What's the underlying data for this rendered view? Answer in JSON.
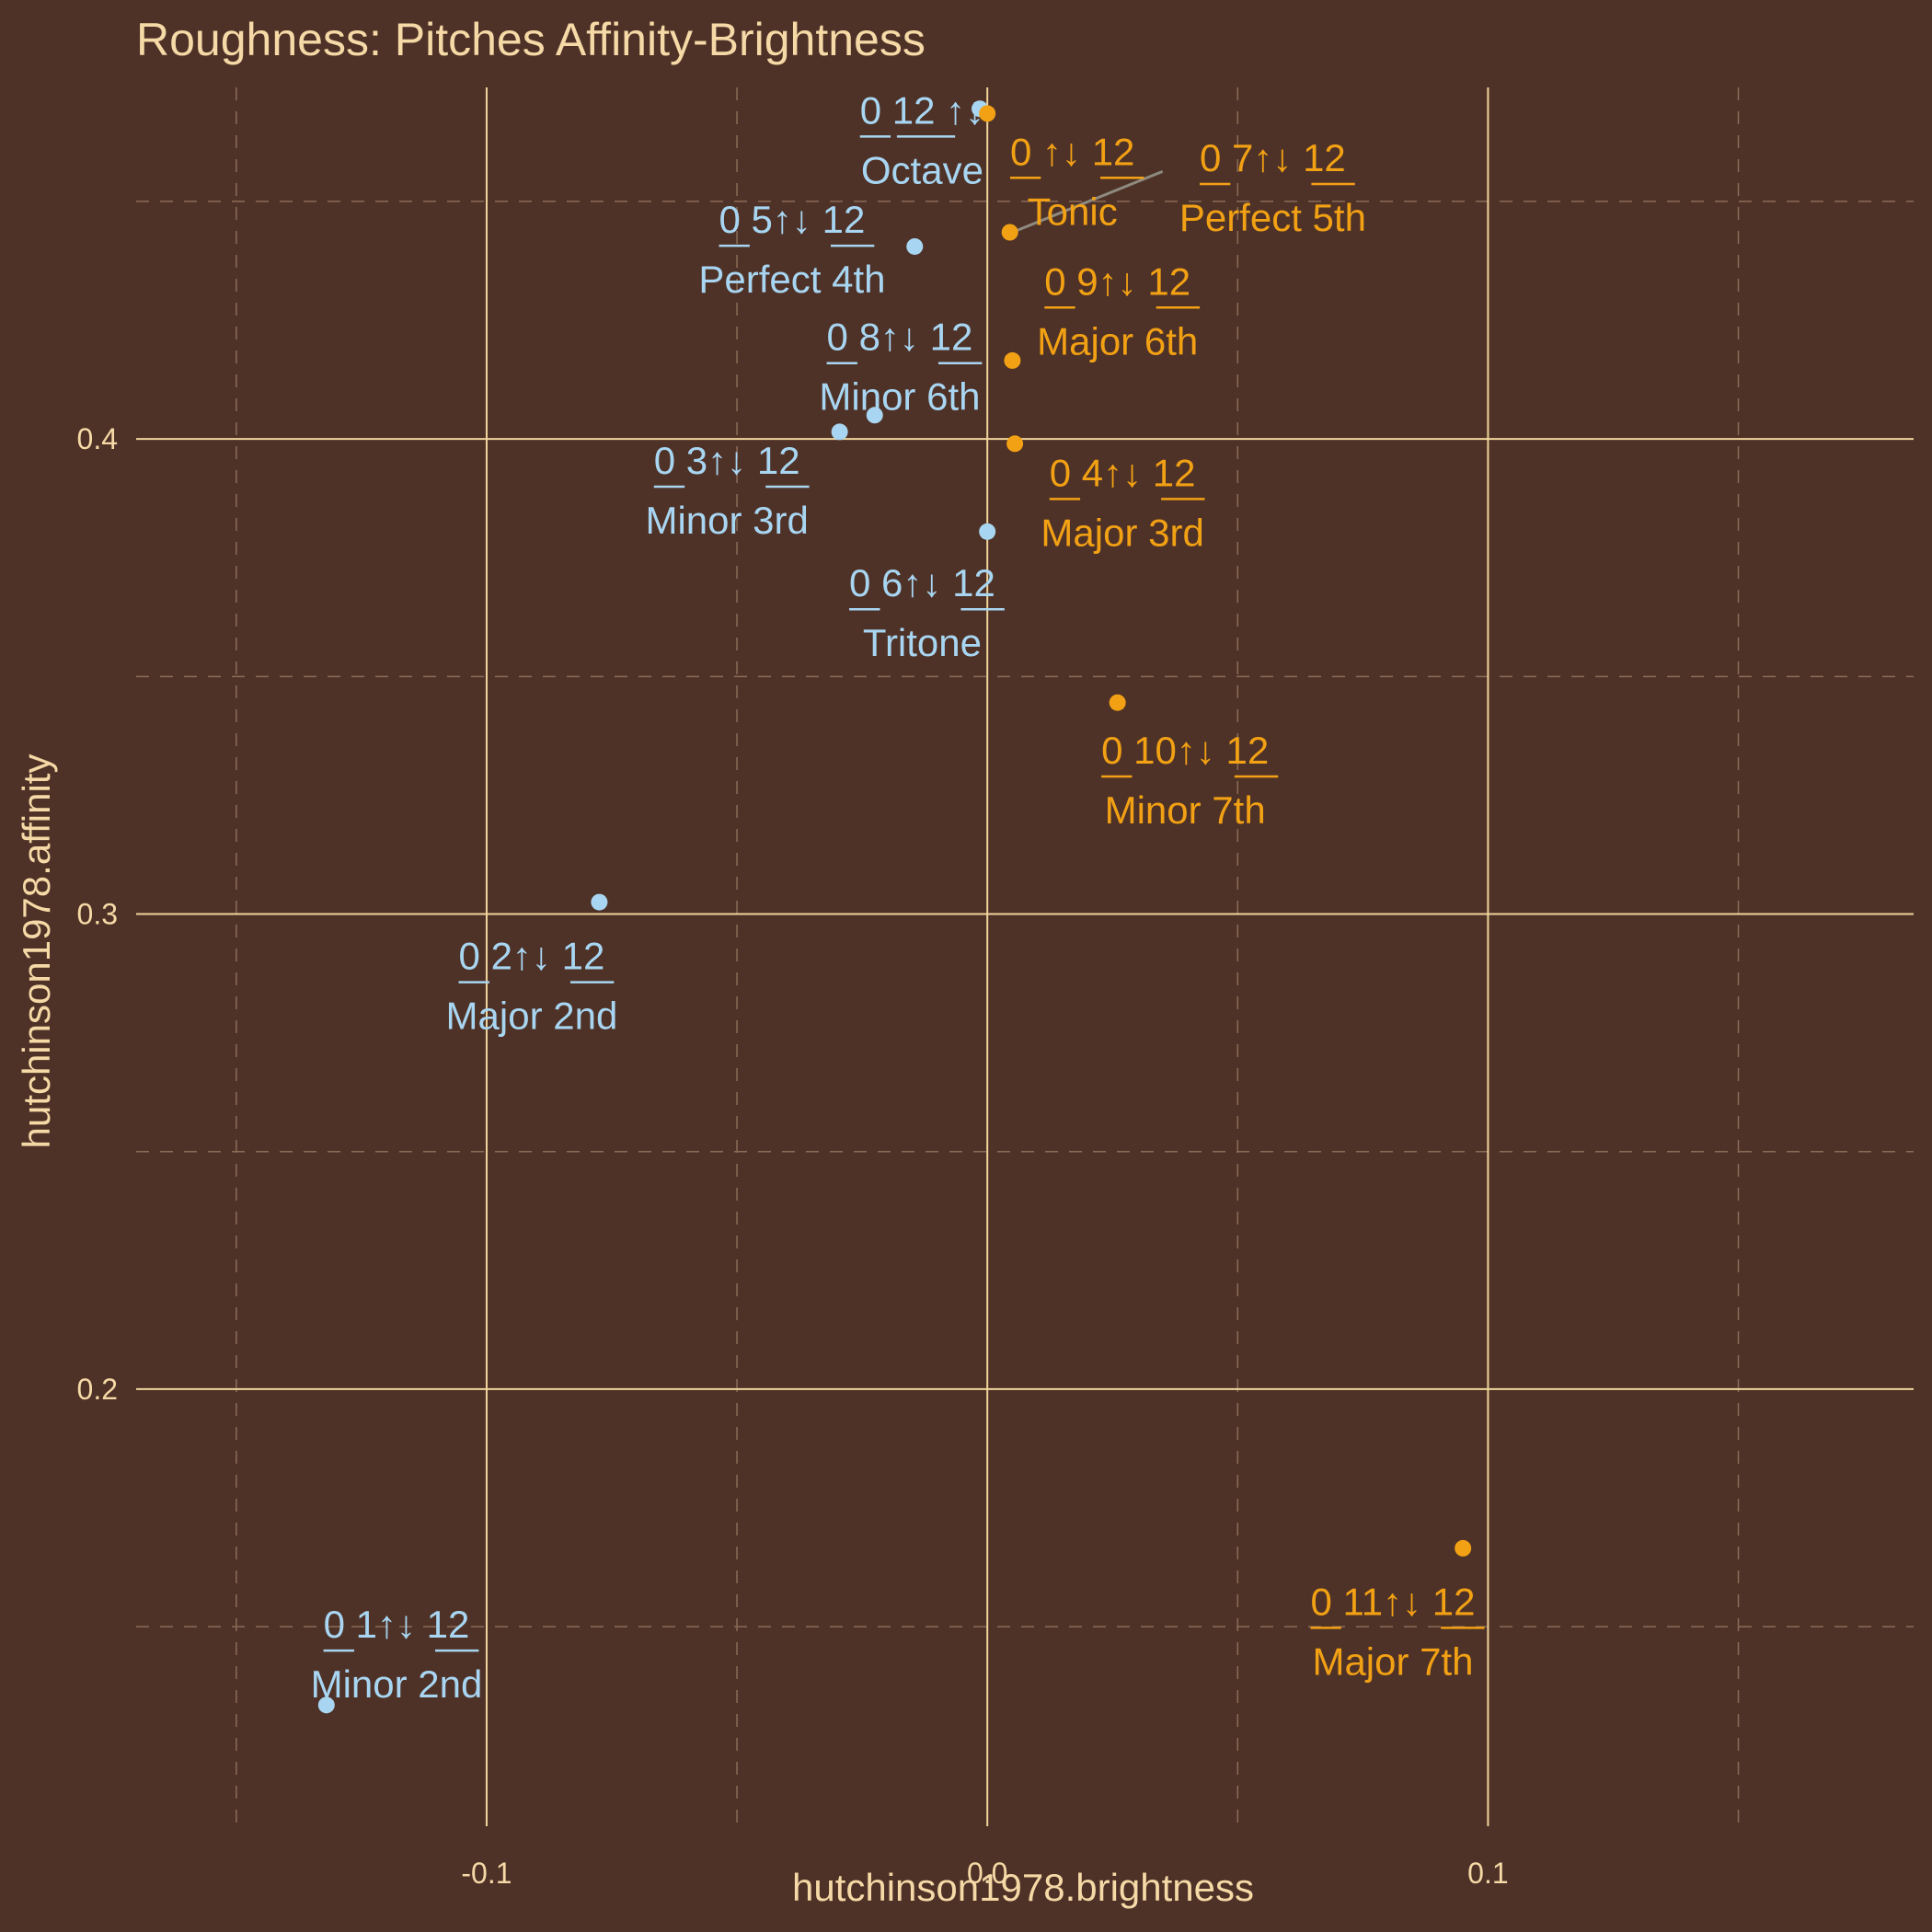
{
  "colors": {
    "background": "#4f3227",
    "text": "#f5d9a6",
    "grid_major": "#f0d59c",
    "grid_minor": "#8a6c57",
    "minor_mode": "#a8d6f2",
    "major_mode": "#f2a114",
    "connector": "#8e8a80"
  },
  "chart_data": {
    "type": "scatter",
    "title": "Roughness: Pitches Affinity-Brightness",
    "xlabel": "hutchinson1978.brightness",
    "ylabel": "hutchinson1978.affinity",
    "xlim": [
      -0.17,
      0.185
    ],
    "ylim": [
      0.108,
      0.474
    ],
    "x_ticks": [
      -0.1,
      0.0,
      0.1
    ],
    "x_tick_labels": [
      "-0.1",
      "0.0",
      "0.1"
    ],
    "y_ticks": [
      0.2,
      0.3,
      0.4
    ],
    "y_tick_labels": [
      "0.2",
      "0.3",
      "0.4"
    ],
    "grid": true,
    "points": [
      {
        "code_a": "0",
        "code_b": "12",
        "arrow": "↑↓",
        "name": "Octave",
        "group": "minor",
        "x": -0.0015,
        "y": 0.4695
      },
      {
        "code_a": "0",
        "code_b": "12",
        "arrow": "↑↓",
        "name": "Tonic",
        "group": "major",
        "x": 0.0,
        "y": 0.4685
      },
      {
        "code_a": "0",
        "code_b": "12",
        "arrow": "↑↓",
        "name": "Perfect 5th",
        "group": "major",
        "x": 0.0045,
        "y": 0.4435
      },
      {
        "code_a": "0",
        "code_b": "12",
        "arrow": "↑↓",
        "name": "Perfect 4th",
        "group": "minor",
        "x": -0.0145,
        "y": 0.4405
      },
      {
        "code_a": "0",
        "code_b": "12",
        "arrow": "↑↓",
        "name": "Major 6th",
        "group": "major",
        "x": 0.005,
        "y": 0.4165
      },
      {
        "code_a": "0",
        "code_b": "12",
        "arrow": "↑↓",
        "name": "Minor 6th",
        "group": "minor",
        "x": -0.0225,
        "y": 0.405
      },
      {
        "code_a": "0",
        "code_b": "12",
        "arrow": "↑↓",
        "name": "Minor 3rd",
        "group": "minor",
        "x": -0.0295,
        "y": 0.4015
      },
      {
        "code_a": "0",
        "code_b": "12",
        "arrow": "↑↓",
        "name": "Major 3rd",
        "group": "major",
        "x": 0.0055,
        "y": 0.399
      },
      {
        "code_a": "0",
        "code_b": "12",
        "arrow": "↑↓",
        "name": "Tritone",
        "group": "minor",
        "x": 0.0,
        "y": 0.3805
      },
      {
        "code_a": "0",
        "code_b": "12",
        "arrow": "↑↓",
        "name": "Minor 7th",
        "group": "major",
        "x": 0.026,
        "y": 0.3445
      },
      {
        "code_a": "0",
        "code_b": "12",
        "arrow": "↑↓",
        "name": "Major 2nd",
        "group": "minor",
        "x": -0.0775,
        "y": 0.3025
      },
      {
        "code_a": "0",
        "code_b": "12",
        "arrow": "↑↓",
        "name": "Major 7th",
        "group": "major",
        "x": 0.095,
        "y": 0.1665
      },
      {
        "code_a": "0",
        "code_b": "12",
        "arrow": "↑↓",
        "name": "Minor 2nd",
        "group": "minor",
        "x": -0.132,
        "y": 0.1335
      }
    ],
    "labels": [
      {
        "prefix": "0",
        "mid": "12",
        "suffix": "↑↓",
        "underline_prefix": true,
        "underline_mid": true,
        "name": "Octave",
        "group": "minor",
        "lx": -0.013,
        "ly": 0.4625
      },
      {
        "prefix": "0",
        "mid": "↑↓",
        "suffix": "12",
        "underline_prefix": true,
        "underline_suffix": true,
        "name": "Tonic",
        "group": "major",
        "lx": 0.017,
        "ly": 0.4538
      },
      {
        "prefix": "0",
        "mid": "7↑↓",
        "suffix": "12",
        "underline_prefix": true,
        "underline_suffix": true,
        "name": "Perfect 5th",
        "group": "major",
        "lx": 0.057,
        "ly": 0.4525
      },
      {
        "prefix": "0",
        "mid": "5↑↓",
        "suffix": "12",
        "underline_prefix": true,
        "underline_suffix": true,
        "name": "Perfect 4th",
        "group": "minor",
        "lx": -0.039,
        "ly": 0.4395
      },
      {
        "prefix": "0",
        "mid": "9↑↓",
        "suffix": "12",
        "underline_prefix": true,
        "underline_suffix": true,
        "name": "Major 6th",
        "group": "major",
        "lx": 0.026,
        "ly": 0.4265
      },
      {
        "prefix": "0",
        "mid": "8↑↓",
        "suffix": "12",
        "underline_prefix": true,
        "underline_suffix": true,
        "name": "Minor 6th",
        "group": "minor",
        "lx": -0.0175,
        "ly": 0.4148
      },
      {
        "prefix": "0",
        "mid": "3↑↓",
        "suffix": "12",
        "underline_prefix": true,
        "underline_suffix": true,
        "name": "Minor 3rd",
        "group": "minor",
        "lx": -0.052,
        "ly": 0.3888
      },
      {
        "prefix": "0",
        "mid": "4↑↓",
        "suffix": "12",
        "underline_prefix": true,
        "underline_suffix": true,
        "name": "Major 3rd",
        "group": "major",
        "lx": 0.027,
        "ly": 0.3862
      },
      {
        "prefix": "0",
        "mid": "6↑↓",
        "suffix": "12",
        "underline_prefix": true,
        "underline_suffix": true,
        "name": "Tritone",
        "group": "minor",
        "lx": -0.013,
        "ly": 0.363
      },
      {
        "prefix": "0",
        "mid": "10↑↓",
        "suffix": "12",
        "underline_prefix": true,
        "underline_suffix": true,
        "name": "Minor 7th",
        "group": "major",
        "lx": 0.0395,
        "ly": 0.3278
      },
      {
        "prefix": "0",
        "mid": "2↑↓",
        "suffix": "12",
        "underline_prefix": true,
        "underline_suffix": true,
        "name": "Major 2nd",
        "group": "minor",
        "lx": -0.091,
        "ly": 0.2845
      },
      {
        "prefix": "0",
        "mid": "11↑↓",
        "suffix": "12",
        "underline_prefix": true,
        "underline_suffix": true,
        "name": "Major 7th",
        "group": "major",
        "lx": 0.081,
        "ly": 0.1486
      },
      {
        "prefix": "0",
        "mid": "1↑↓",
        "suffix": "12",
        "underline_prefix": true,
        "underline_suffix": true,
        "name": "Minor 2nd",
        "group": "minor",
        "lx": -0.118,
        "ly": 0.1438
      }
    ],
    "connectors": [
      {
        "from": [
          0.005,
          0.4435
        ],
        "to": [
          0.035,
          0.4563
        ]
      }
    ]
  }
}
